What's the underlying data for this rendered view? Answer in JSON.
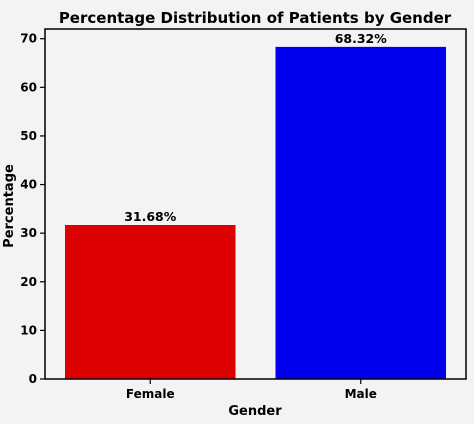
{
  "chart_data": {
    "type": "bar",
    "title": "Percentage Distribution of Patients by Gender",
    "xlabel": "Gender",
    "ylabel": "Percentage",
    "categories": [
      "Female",
      "Male"
    ],
    "values": [
      31.68,
      68.32
    ],
    "data_labels": [
      "31.68%",
      "68.32%"
    ],
    "colors": [
      "#dd0000",
      "#0000ee"
    ],
    "ylim": [
      0,
      72
    ],
    "yticks": [
      0,
      10,
      20,
      30,
      40,
      50,
      60,
      70
    ],
    "grid": false,
    "legend": "none"
  }
}
